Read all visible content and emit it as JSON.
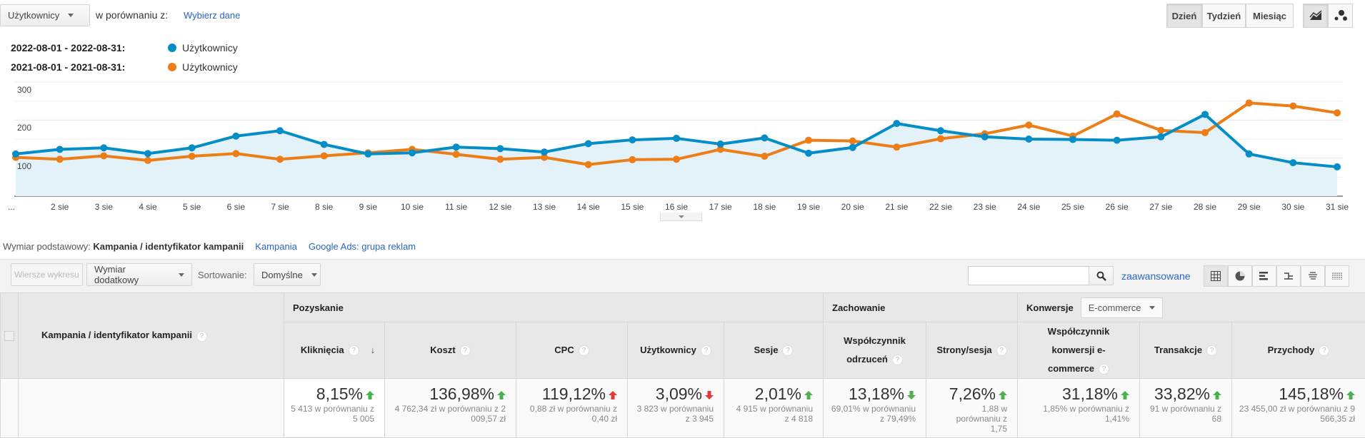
{
  "top": {
    "metric_select": "Użytkownicy",
    "compare_label": "w porównaniu z:",
    "choose_link": "Wybierz dane",
    "period_buttons": [
      "Dzień",
      "Tydzień",
      "Miesiąc"
    ],
    "active_period": "Dzień"
  },
  "legend": [
    {
      "date": "2022-08-01 - 2022-08-31:",
      "label": "Użytkownicy",
      "color": "#058dc7"
    },
    {
      "date": "2021-08-01 - 2021-08-31:",
      "label": "Użytkownicy",
      "color": "#ed7e17"
    }
  ],
  "chart_data": {
    "type": "line",
    "x": [
      "...",
      "2 sie",
      "3 sie",
      "4 sie",
      "5 sie",
      "6 sie",
      "7 sie",
      "8 sie",
      "9 sie",
      "10 sie",
      "11 sie",
      "12 sie",
      "13 sie",
      "14 sie",
      "15 sie",
      "16 sie",
      "17 sie",
      "18 sie",
      "19 sie",
      "20 sie",
      "21 sie",
      "22 sie",
      "23 sie",
      "24 sie",
      "25 sie",
      "26 sie",
      "27 sie",
      "28 sie",
      "29 sie",
      "30 sie",
      "31 sie"
    ],
    "yticks": [
      "300",
      "200",
      "100"
    ],
    "ylim": [
      0,
      300
    ],
    "series": [
      {
        "name": "2022-08-01 - 2022-08-31: Użytkownicy",
        "color": "#058dc7",
        "values": [
          111,
          123,
          127,
          112,
          127,
          158,
          172,
          136,
          111,
          114,
          129,
          125,
          116,
          138,
          148,
          152,
          137,
          153,
          113,
          128,
          191,
          172,
          156,
          150,
          149,
          147,
          156,
          215,
          111,
          88,
          77
        ]
      },
      {
        "name": "2021-08-01 - 2021-08-31: Użytkownicy",
        "color": "#ed7e17",
        "values": [
          102,
          97,
          106,
          94,
          105,
          112,
          97,
          106,
          114,
          123,
          110,
          97,
          102,
          83,
          96,
          97,
          123,
          105,
          147,
          145,
          129,
          151,
          164,
          187,
          158,
          216,
          173,
          167,
          245,
          237,
          219
        ]
      }
    ]
  },
  "dimension": {
    "label": "Wymiar podstawowy:",
    "active": "Kampania / identyfikator kampanii",
    "links": [
      "Kampania",
      "Google Ads: grupa reklam"
    ]
  },
  "toolbar": {
    "plot_rows": "Wiersze wykresu",
    "secondary_dim": "Wymiar dodatkowy",
    "sort_label": "Sortowanie:",
    "sort_value": "Domyślne",
    "search_value": "",
    "advanced": "zaawansowane"
  },
  "table": {
    "dim_header": "Kampania / identyfikator kampanii",
    "groups": {
      "acq": "Pozyskanie",
      "beh": "Zachowanie",
      "conv": "Konwersje",
      "conv_select": "E-commerce"
    },
    "columns": [
      {
        "h": "Kliknięcia",
        "pct": "8,15%",
        "dir": "up-good",
        "sub": "5 413 w porównaniu z 5 005"
      },
      {
        "h": "Koszt",
        "pct": "136,98%",
        "dir": "up-good",
        "sub": "4 762,34 zł w porównaniu z 2 009,57 zł"
      },
      {
        "h": "CPC",
        "pct": "119,12%",
        "dir": "up-bad",
        "sub": "0,88 zł w porównaniu z 0,40 zł"
      },
      {
        "h": "Użytkownicy",
        "pct": "3,09%",
        "dir": "down-bad",
        "sub": "3 823 w porównaniu z 3 945"
      },
      {
        "h": "Sesje",
        "pct": "2,01%",
        "dir": "up-good",
        "sub": "4 915 w porównaniu z 4 818"
      },
      {
        "h": "Współczynnik odrzuceń",
        "pct": "13,18%",
        "dir": "down-good",
        "sub": "69,01% w porównaniu z 79,49%"
      },
      {
        "h": "Strony/sesja",
        "pct": "7,26%",
        "dir": "up-good",
        "sub": "1,88 w porównaniu z 1,75"
      },
      {
        "h": "Współczynnik konwersji e-commerce",
        "pct": "31,18%",
        "dir": "up-good",
        "sub": "1,85% w porównaniu z 1,41%"
      },
      {
        "h": "Transakcje",
        "pct": "33,82%",
        "dir": "up-good",
        "sub": "91 w porównaniu z 68"
      },
      {
        "h": "Przychody",
        "pct": "145,18%",
        "dir": "up-good",
        "sub": "23 455,00 zł w porównaniu z 9 566,35 zł"
      }
    ]
  },
  "colors": {
    "good": "#4caf50",
    "bad": "#e53935"
  }
}
